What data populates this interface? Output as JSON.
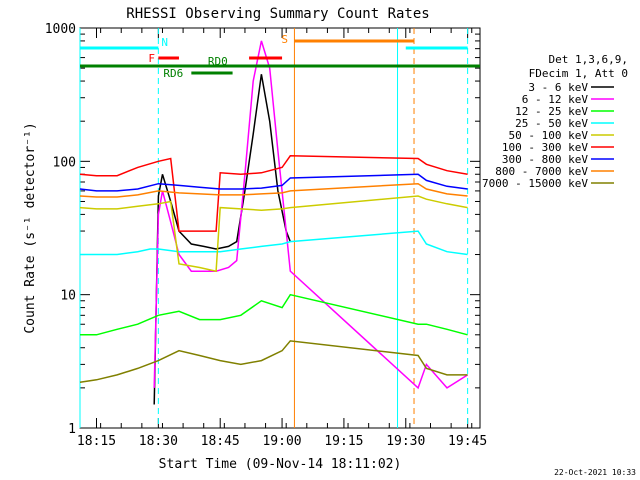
{
  "chart_data": {
    "type": "line",
    "title": "RHESSI Observing Summary Count Rates",
    "xlabel": "Start Time (09-Nov-14 18:11:02)",
    "ylabel": "Count Rate (s⁻¹ detector⁻¹)",
    "yscale": "log",
    "ylim": [
      1,
      1000
    ],
    "xlim": [
      "18:11",
      "19:48"
    ],
    "x_ticks": [
      "18:15",
      "18:30",
      "18:45",
      "19:00",
      "19:15",
      "19:30",
      "19:45"
    ],
    "y_ticks": [
      "1",
      "10",
      "100",
      "1000"
    ],
    "legend_header": [
      "Det 1,3,6,9,",
      "FDecim 1, Att 0"
    ],
    "legend_position": "right",
    "footer": "22-Oct-2021 10:33",
    "series": [
      {
        "name": "3 - 6 keV",
        "color": "#000000",
        "x": [
          "18:29",
          "18:30",
          "18:31",
          "18:33",
          "18:35",
          "18:38",
          "18:41",
          "18:44",
          "18:47",
          "18:49",
          "18:51",
          "18:53",
          "18:55",
          "18:57",
          "18:59",
          "19:01",
          "19:02"
        ],
        "y": [
          1.5,
          55,
          80,
          50,
          30,
          24,
          23,
          22,
          23,
          25,
          60,
          160,
          450,
          200,
          60,
          30,
          25
        ]
      },
      {
        "name": "6 - 12 keV",
        "color": "#ff00ff",
        "x": [
          "18:29",
          "18:30",
          "18:31",
          "18:33",
          "18:35",
          "18:38",
          "18:41",
          "18:44",
          "18:47",
          "18:49",
          "18:51",
          "18:53",
          "18:55",
          "18:57",
          "18:59",
          "19:01",
          "19:02",
          "19:33",
          "19:35",
          "19:40",
          "19:45"
        ],
        "y": [
          2,
          40,
          60,
          35,
          20,
          15,
          15,
          15,
          16,
          18,
          80,
          400,
          800,
          500,
          120,
          30,
          15,
          2,
          3,
          2,
          2.5
        ]
      },
      {
        "name": "12 - 25 keV",
        "color": "#00ff00",
        "x": [
          "18:11",
          "18:15",
          "18:20",
          "18:25",
          "18:30",
          "18:35",
          "18:40",
          "18:45",
          "18:50",
          "18:55",
          "19:00",
          "19:02",
          "19:33",
          "19:35",
          "19:40",
          "19:45"
        ],
        "y": [
          5,
          5,
          5.5,
          6,
          7,
          7.5,
          6.5,
          6.5,
          7,
          9,
          8,
          10,
          6,
          6,
          5.5,
          5
        ]
      },
      {
        "name": "25 - 50 keV",
        "color": "#00ffff",
        "x": [
          "18:11",
          "18:15",
          "18:20",
          "18:25",
          "18:28",
          "18:30",
          "18:35",
          "18:40",
          "18:45",
          "18:50",
          "18:55",
          "19:00",
          "19:02",
          "19:33",
          "19:35",
          "19:40",
          "19:45"
        ],
        "y": [
          20,
          20,
          20,
          21,
          22,
          22,
          21,
          21,
          21,
          22,
          23,
          24,
          25,
          30,
          24,
          21,
          20
        ]
      },
      {
        "name": "50 - 100 keV",
        "color": "#cccc00",
        "x": [
          "18:11",
          "18:15",
          "18:20",
          "18:25",
          "18:30",
          "18:33",
          "18:35",
          "18:40",
          "18:44",
          "18:45",
          "18:50",
          "18:55",
          "19:00",
          "19:02",
          "19:33",
          "19:35",
          "19:40",
          "19:45"
        ],
        "y": [
          45,
          44,
          44,
          46,
          48,
          50,
          17,
          16,
          15,
          45,
          44,
          43,
          44,
          45,
          55,
          52,
          48,
          45
        ]
      },
      {
        "name": "100 - 300 keV",
        "color": "#ff0000",
        "x": [
          "18:11",
          "18:15",
          "18:20",
          "18:25",
          "18:30",
          "18:33",
          "18:35",
          "18:40",
          "18:44",
          "18:45",
          "18:50",
          "18:55",
          "19:00",
          "19:02",
          "19:33",
          "19:35",
          "19:40",
          "19:45"
        ],
        "y": [
          80,
          78,
          78,
          90,
          100,
          105,
          30,
          30,
          30,
          82,
          80,
          82,
          90,
          110,
          105,
          95,
          85,
          80
        ]
      },
      {
        "name": "300 - 800 keV",
        "color": "#0000ff",
        "x": [
          "18:11",
          "18:15",
          "18:20",
          "18:25",
          "18:30",
          "18:35",
          "18:40",
          "18:45",
          "18:50",
          "18:55",
          "19:00",
          "19:02",
          "19:33",
          "19:35",
          "19:40",
          "19:45"
        ],
        "y": [
          62,
          60,
          60,
          62,
          68,
          66,
          64,
          62,
          62,
          63,
          66,
          75,
          80,
          72,
          65,
          62
        ]
      },
      {
        "name": "800 - 7000 keV",
        "color": "#ff8000",
        "x": [
          "18:11",
          "18:15",
          "18:20",
          "18:25",
          "18:30",
          "18:35",
          "18:40",
          "18:45",
          "18:50",
          "18:55",
          "19:00",
          "19:02",
          "19:33",
          "19:35",
          "19:40",
          "19:45"
        ],
        "y": [
          55,
          54,
          54,
          56,
          60,
          58,
          57,
          56,
          56,
          57,
          58,
          60,
          68,
          62,
          57,
          55
        ]
      },
      {
        "name": "7000 - 15000 keV",
        "color": "#808000",
        "x": [
          "18:11",
          "18:15",
          "18:20",
          "18:25",
          "18:30",
          "18:35",
          "18:40",
          "18:45",
          "18:50",
          "18:55",
          "19:00",
          "19:02",
          "19:33",
          "19:35",
          "19:40",
          "19:45"
        ],
        "y": [
          2.2,
          2.3,
          2.5,
          2.8,
          3.2,
          3.8,
          3.5,
          3.2,
          3.0,
          3.2,
          3.8,
          4.5,
          3.5,
          2.8,
          2.5,
          2.5
        ]
      }
    ],
    "flags": [
      {
        "label": "N",
        "color": "#00ffff",
        "segments": [
          [
            "18:11",
            "18:30"
          ],
          [
            "19:30",
            "19:45"
          ]
        ]
      },
      {
        "label": "F",
        "color": "#ff0000",
        "segments": [
          [
            "18:30",
            "18:35"
          ]
        ]
      },
      {
        "label": "RD0",
        "color": "#008000",
        "segments": [
          [
            "18:11",
            "19:48"
          ]
        ]
      },
      {
        "label": "RD6",
        "color": "#008000",
        "segments": [
          [
            "18:38",
            "18:48"
          ]
        ]
      },
      {
        "label": "S",
        "color": "#ff8000",
        "segments": [
          [
            "19:03",
            "19:32"
          ]
        ]
      },
      {
        "label": "",
        "color": "#ff0000",
        "segments": [
          [
            "18:52",
            "19:00"
          ]
        ]
      }
    ],
    "vertical_markers": [
      {
        "x": "18:11",
        "color": "#00ffff",
        "style": "solid"
      },
      {
        "x": "18:30",
        "color": "#00ffff",
        "style": "dashed"
      },
      {
        "x": "19:03",
        "color": "#ff8000",
        "style": "solid"
      },
      {
        "x": "19:28",
        "color": "#00ffff",
        "style": "solid"
      },
      {
        "x": "19:32",
        "color": "#ff8000",
        "style": "dashed"
      },
      {
        "x": "19:45",
        "color": "#00ffff",
        "style": "dashed"
      }
    ]
  }
}
